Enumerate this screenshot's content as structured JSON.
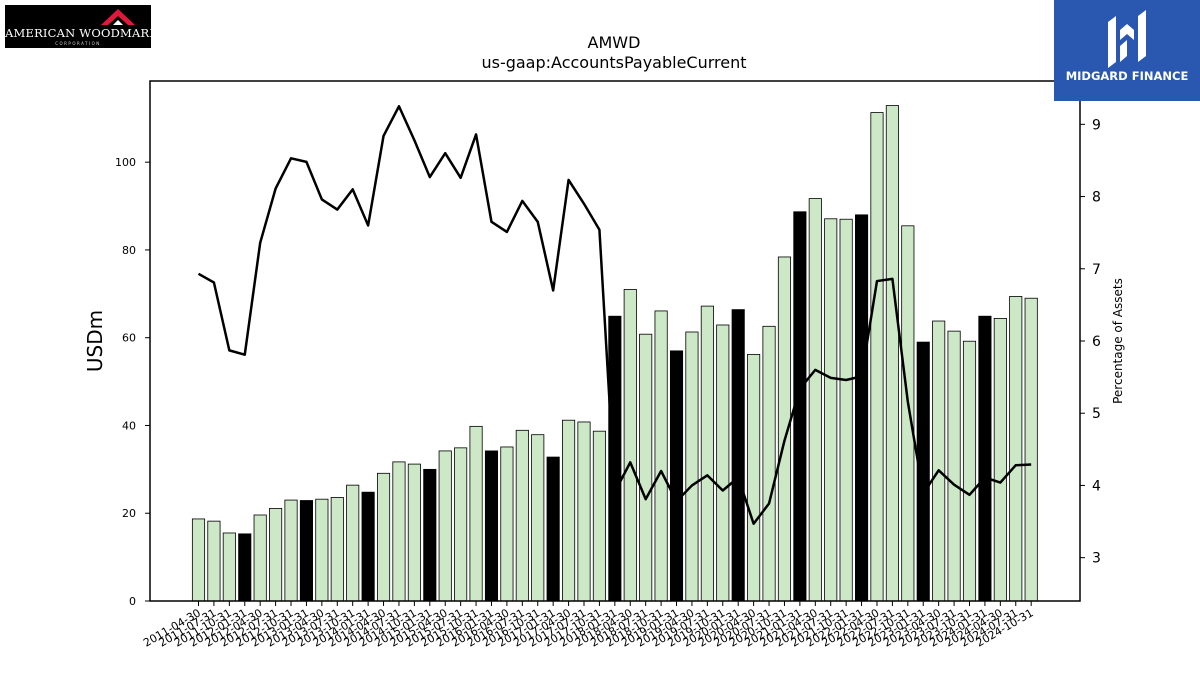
{
  "logos": {
    "left": {
      "text": "AMERICAN WOODMARK",
      "subtext": "CORPORATION"
    },
    "right": {
      "text": "MIDGARD FINANCE"
    }
  },
  "colors": {
    "bar_default": "#cce8c6",
    "bar_highlight": "#000000",
    "line": "#000000"
  },
  "chart_data": {
    "type": "bar",
    "title": "AMWD",
    "subtitle": "us-gaap:AccountsPayableCurrent",
    "ylabel": "USDm",
    "y2label": "Percentage of Assets",
    "ylim": [
      0,
      118.5
    ],
    "y2lim": [
      2.4,
      9.6
    ],
    "yticks": [
      0,
      20,
      40,
      60,
      80,
      100
    ],
    "y2ticks": [
      3,
      4,
      5,
      6,
      7,
      8,
      9
    ],
    "categories": [
      "2011-04-30",
      "2011-07-31",
      "2011-10-31",
      "2012-01-31",
      "2012-04-30",
      "2012-07-31",
      "2012-10-31",
      "2013-01-31",
      "2013-04-30",
      "2013-07-31",
      "2013-10-31",
      "2014-01-31",
      "2014-04-30",
      "2014-07-31",
      "2014-10-31",
      "2015-01-31",
      "2015-04-30",
      "2015-07-31",
      "2015-10-31",
      "2016-01-31",
      "2016-04-30",
      "2016-07-31",
      "2016-10-31",
      "2017-01-31",
      "2017-04-30",
      "2017-07-31",
      "2017-10-31",
      "2018-01-31",
      "2018-04-30",
      "2018-07-31",
      "2018-10-31",
      "2019-01-31",
      "2019-04-30",
      "2019-07-31",
      "2019-10-31",
      "2020-01-31",
      "2020-04-30",
      "2020-07-31",
      "2020-10-31",
      "2021-01-31",
      "2021-04-30",
      "2021-07-31",
      "2021-10-31",
      "2022-01-31",
      "2022-04-30",
      "2022-07-31",
      "2022-10-31",
      "2023-01-31",
      "2023-04-30",
      "2023-07-31",
      "2023-10-31",
      "2024-01-31",
      "2024-04-30",
      "2024-07-31",
      "2024-10-31"
    ],
    "series": [
      {
        "type": "bar",
        "values": [
          18.7,
          18.2,
          15.5,
          15.3,
          19.6,
          21.1,
          23.0,
          22.9,
          23.2,
          23.6,
          26.4,
          24.8,
          29.1,
          31.7,
          31.2,
          30.0,
          34.2,
          34.9,
          39.8,
          34.2,
          35.1,
          38.9,
          37.9,
          32.8,
          41.2,
          40.8,
          38.7,
          64.9,
          71.0,
          60.8,
          66.1,
          57.0,
          61.3,
          67.2,
          62.9,
          66.4,
          56.2,
          62.6,
          78.4,
          88.7,
          91.7,
          87.1,
          87.0,
          88.0,
          111.3,
          112.9,
          85.5,
          59.0,
          63.8,
          61.5,
          59.2,
          64.9,
          64.4,
          69.4,
          69.0
        ],
        "highlight": [
          false,
          false,
          false,
          true,
          false,
          false,
          false,
          true,
          false,
          false,
          false,
          true,
          false,
          false,
          false,
          true,
          false,
          false,
          false,
          true,
          false,
          false,
          false,
          true,
          false,
          false,
          false,
          true,
          false,
          false,
          false,
          true,
          false,
          false,
          false,
          true,
          false,
          false,
          false,
          true,
          false,
          false,
          false,
          true,
          false,
          false,
          false,
          true,
          false,
          false,
          false,
          true,
          false,
          false,
          false
        ]
      },
      {
        "type": "line",
        "axis": "right",
        "values": [
          6.93,
          6.81,
          5.87,
          5.81,
          7.36,
          8.11,
          8.53,
          8.48,
          7.96,
          7.82,
          8.1,
          7.6,
          8.84,
          9.25,
          8.78,
          8.27,
          8.6,
          8.26,
          8.86,
          7.65,
          7.51,
          7.94,
          7.65,
          6.7,
          8.23,
          7.9,
          7.54,
          3.91,
          4.32,
          3.81,
          4.2,
          3.78,
          4.0,
          4.14,
          3.93,
          4.11,
          3.47,
          3.75,
          4.62,
          5.34,
          5.6,
          5.49,
          5.46,
          5.51,
          6.83,
          6.86,
          5.16,
          3.89,
          4.21,
          4.01,
          3.87,
          4.11,
          4.04,
          4.28,
          4.29
        ]
      }
    ]
  }
}
